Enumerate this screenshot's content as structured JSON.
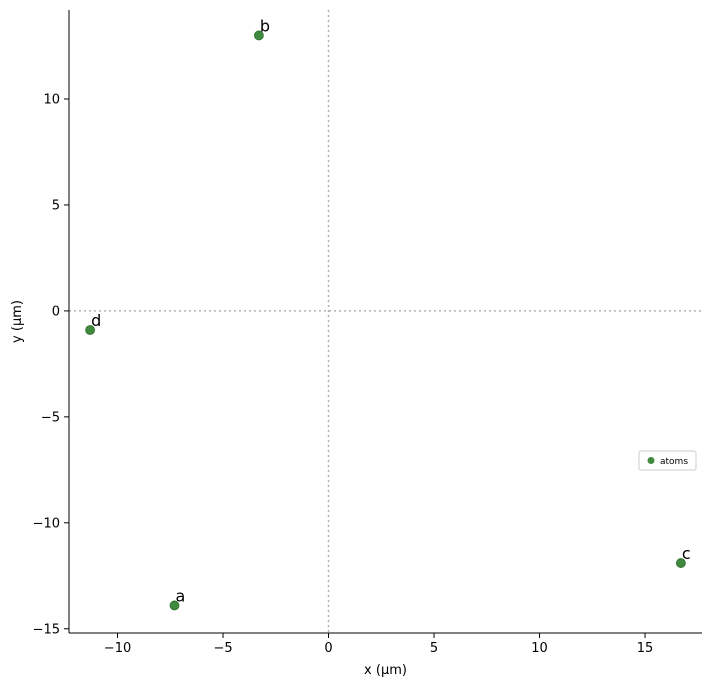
{
  "chart_data": {
    "type": "scatter",
    "title": "",
    "xlabel": "x (µm)",
    "ylabel": "y (µm)",
    "xlim": [
      -12.3,
      17.7
    ],
    "ylim": [
      -15.2,
      14.2
    ],
    "x_ticks": [
      {
        "value": -10,
        "label": "−10"
      },
      {
        "value": -5,
        "label": "−5"
      },
      {
        "value": 0,
        "label": "0"
      },
      {
        "value": 5,
        "label": "5"
      },
      {
        "value": 10,
        "label": "10"
      },
      {
        "value": 15,
        "label": "15"
      }
    ],
    "y_ticks": [
      {
        "value": -15,
        "label": "−15"
      },
      {
        "value": -10,
        "label": "−10"
      },
      {
        "value": -5,
        "label": "−5"
      },
      {
        "value": 0,
        "label": "0"
      },
      {
        "value": 5,
        "label": "5"
      },
      {
        "value": 10,
        "label": "10"
      }
    ],
    "reference_lines": {
      "x": 0,
      "y": 0,
      "style": "dotted",
      "color": "#b0b0b0"
    },
    "grid": false,
    "legend": {
      "placement": "right",
      "entries": [
        "atoms"
      ]
    },
    "series": [
      {
        "name": "atoms",
        "color": "#3f8a3f",
        "points": [
          {
            "label": "a",
            "x": -7.3,
            "y": -13.9
          },
          {
            "label": "b",
            "x": -3.3,
            "y": 13.0
          },
          {
            "label": "c",
            "x": 16.7,
            "y": -11.9
          },
          {
            "label": "d",
            "x": -11.3,
            "y": -0.9
          }
        ]
      }
    ]
  }
}
